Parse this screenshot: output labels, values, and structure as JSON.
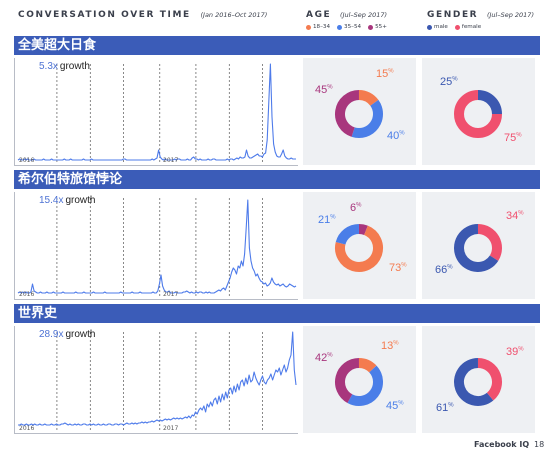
{
  "header": {
    "title": "CONVERSATION OVER TIME",
    "title_range": "(Jan 2016–Oct 2017)",
    "age_label": "AGE",
    "age_range": "(Jul–Sep 2017)",
    "gender_label": "GENDER",
    "gender_range": "(Jul–Sep 2017)"
  },
  "legends": {
    "age": [
      {
        "label": "18–34",
        "color": "#f47b4f"
      },
      {
        "label": "35–54",
        "color": "#4a7ee8"
      },
      {
        "label": "55+",
        "color": "#a8367d"
      }
    ],
    "gender": [
      {
        "label": "male",
        "color": "#3b58b0"
      },
      {
        "label": "female",
        "color": "#f0506e"
      }
    ]
  },
  "year_labels": [
    "2016",
    "2017"
  ],
  "growth_word": "growth",
  "footer": {
    "brand": "Facebook IQ",
    "page": "18"
  },
  "chart_data": [
    {
      "type": "line",
      "title": "全美超大日食",
      "growth": "5.3x",
      "x_range": [
        "2016-01",
        "2017-10"
      ],
      "y_range": [
        0,
        1
      ],
      "series": [
        {
          "values": [
            0.02,
            0.03,
            0.02,
            0.02,
            0.03,
            0.02,
            0.03,
            0.02,
            0.02,
            0.02,
            0.03,
            0.02,
            0.02,
            0.02,
            0.02,
            0.02,
            0.03,
            0.02,
            0.02,
            0.02,
            0.02,
            0.03,
            0.02,
            0.02,
            0.02,
            0.02,
            0.02,
            0.02,
            0.02,
            0.03,
            0.02,
            0.02,
            0.02,
            0.03,
            0.02,
            0.02,
            0.02,
            0.02,
            0.02,
            0.02,
            0.02,
            0.03,
            0.02,
            0.02,
            0.02,
            0.02,
            0.03,
            0.02,
            0.02,
            0.02,
            0.02,
            0.02,
            0.02,
            0.02,
            0.02,
            0.02,
            0.02,
            0.02,
            0.02,
            0.02,
            0.02,
            0.02,
            0.02,
            0.02,
            0.02,
            0.02,
            0.03,
            0.03,
            0.02,
            0.02,
            0.02,
            0.02,
            0.02,
            0.02,
            0.02,
            0.02,
            0.02,
            0.02,
            0.02,
            0.02,
            0.02,
            0.02,
            0.02,
            0.02,
            0.03,
            0.02,
            0.03,
            0.04,
            0.12,
            0.05,
            0.03,
            0.02,
            0.03,
            0.02,
            0.02,
            0.02,
            0.02,
            0.02,
            0.03,
            0.02,
            0.03,
            0.03,
            0.02,
            0.02,
            0.02,
            0.02,
            0.03,
            0.02,
            0.02,
            0.04,
            0.05,
            0.03,
            0.03,
            0.02,
            0.03,
            0.02,
            0.02,
            0.02,
            0.02,
            0.03,
            0.02,
            0.02,
            0.03,
            0.03,
            0.02,
            0.02,
            0.02,
            0.02,
            0.02,
            0.02,
            0.02,
            0.03,
            0.02,
            0.03,
            0.03,
            0.02,
            0.03,
            0.04,
            0.03,
            0.05,
            0.04,
            0.04,
            0.05,
            0.12,
            0.06,
            0.04,
            0.04,
            0.05,
            0.06,
            0.07,
            0.08,
            0.06,
            0.06,
            0.05,
            0.08,
            0.09,
            0.22,
            0.6,
            0.98,
            0.45,
            0.18,
            0.1,
            0.06,
            0.05,
            0.05,
            0.08,
            0.12,
            0.06,
            0.04,
            0.03,
            0.03,
            0.04,
            0.03,
            0.03,
            0.03
          ]
        }
      ]
    },
    {
      "type": "line",
      "title": "希尔伯特旅馆悖论",
      "growth": "15.4x",
      "x_range": [
        "2016-01",
        "2017-10"
      ],
      "y_range": [
        0,
        1
      ],
      "series": [
        {
          "values": [
            0.03,
            0.04,
            0.03,
            0.04,
            0.03,
            0.04,
            0.03,
            0.03,
            0.04,
            0.12,
            0.05,
            0.04,
            0.03,
            0.03,
            0.04,
            0.03,
            0.03,
            0.03,
            0.04,
            0.03,
            0.03,
            0.03,
            0.04,
            0.03,
            0.03,
            0.03,
            0.03,
            0.03,
            0.04,
            0.03,
            0.03,
            0.03,
            0.03,
            0.03,
            0.03,
            0.03,
            0.04,
            0.03,
            0.03,
            0.03,
            0.03,
            0.04,
            0.03,
            0.03,
            0.03,
            0.03,
            0.03,
            0.04,
            0.03,
            0.03,
            0.03,
            0.03,
            0.03,
            0.03,
            0.04,
            0.03,
            0.03,
            0.03,
            0.03,
            0.03,
            0.03,
            0.03,
            0.03,
            0.03,
            0.04,
            0.03,
            0.03,
            0.03,
            0.03,
            0.03,
            0.03,
            0.04,
            0.03,
            0.03,
            0.03,
            0.03,
            0.04,
            0.03,
            0.03,
            0.03,
            0.03,
            0.03,
            0.03,
            0.03,
            0.04,
            0.03,
            0.03,
            0.05,
            0.12,
            0.21,
            0.1,
            0.06,
            0.04,
            0.04,
            0.05,
            0.03,
            0.03,
            0.03,
            0.04,
            0.03,
            0.03,
            0.03,
            0.03,
            0.04,
            0.04,
            0.05,
            0.04,
            0.03,
            0.04,
            0.03,
            0.03,
            0.04,
            0.03,
            0.04,
            0.04,
            0.03,
            0.03,
            0.04,
            0.03,
            0.04,
            0.03,
            0.03,
            0.03,
            0.04,
            0.05,
            0.06,
            0.05,
            0.07,
            0.08,
            0.06,
            0.1,
            0.14,
            0.18,
            0.24,
            0.28,
            0.26,
            0.22,
            0.3,
            0.28,
            0.35,
            0.3,
            0.42,
            0.68,
            0.96,
            0.48,
            0.35,
            0.28,
            0.25,
            0.2,
            0.22,
            0.18,
            0.15,
            0.14,
            0.12,
            0.13,
            0.1,
            0.11,
            0.13,
            0.18,
            0.14,
            0.12,
            0.11,
            0.12,
            0.1,
            0.11,
            0.12,
            0.1,
            0.09,
            0.1,
            0.12,
            0.11,
            0.1,
            0.09,
            0.1
          ]
        }
      ]
    },
    {
      "type": "line",
      "title": "世界史",
      "growth": "28.9x",
      "x_range": [
        "2016-01",
        "2017-10"
      ],
      "y_range": [
        0,
        1
      ],
      "series": [
        {
          "values": [
            0.05,
            0.05,
            0.06,
            0.05,
            0.05,
            0.06,
            0.05,
            0.05,
            0.06,
            0.05,
            0.06,
            0.05,
            0.05,
            0.06,
            0.05,
            0.05,
            0.06,
            0.05,
            0.05,
            0.05,
            0.06,
            0.05,
            0.05,
            0.06,
            0.05,
            0.05,
            0.06,
            0.06,
            0.07,
            0.06,
            0.05,
            0.06,
            0.05,
            0.05,
            0.06,
            0.05,
            0.06,
            0.05,
            0.05,
            0.06,
            0.06,
            0.05,
            0.05,
            0.06,
            0.05,
            0.06,
            0.05,
            0.05,
            0.06,
            0.05,
            0.05,
            0.06,
            0.05,
            0.05,
            0.06,
            0.06,
            0.05,
            0.05,
            0.06,
            0.06,
            0.05,
            0.06,
            0.06,
            0.05,
            0.06,
            0.07,
            0.06,
            0.06,
            0.07,
            0.06,
            0.07,
            0.06,
            0.07,
            0.07,
            0.08,
            0.07,
            0.08,
            0.07,
            0.08,
            0.08,
            0.09,
            0.08,
            0.09,
            0.1,
            0.09,
            0.1,
            0.09,
            0.1,
            0.11,
            0.1,
            0.11,
            0.1,
            0.11,
            0.12,
            0.11,
            0.12,
            0.11,
            0.12,
            0.11,
            0.12,
            0.13,
            0.12,
            0.14,
            0.12,
            0.15,
            0.14,
            0.18,
            0.16,
            0.2,
            0.22,
            0.2,
            0.24,
            0.18,
            0.26,
            0.23,
            0.28,
            0.24,
            0.3,
            0.32,
            0.26,
            0.34,
            0.28,
            0.36,
            0.3,
            0.38,
            0.32,
            0.4,
            0.42,
            0.36,
            0.44,
            0.38,
            0.46,
            0.4,
            0.48,
            0.5,
            0.44,
            0.52,
            0.46,
            0.55,
            0.48,
            0.5,
            0.58,
            0.52,
            0.48,
            0.45,
            0.5,
            0.54,
            0.48,
            0.46,
            0.5,
            0.52,
            0.56,
            0.5,
            0.55,
            0.6,
            0.58,
            0.62,
            0.55,
            0.6,
            0.65,
            0.58,
            0.62,
            0.7,
            0.75,
            0.98,
            0.6,
            0.45
          ]
        }
      ]
    },
    {
      "type": "pie",
      "title": "AGE",
      "row": 1,
      "slices": [
        {
          "label": "18–34",
          "value": 15
        },
        {
          "label": "35–54",
          "value": 40
        },
        {
          "label": "55+",
          "value": 45
        }
      ]
    },
    {
      "type": "pie",
      "title": "GENDER",
      "row": 1,
      "slices": [
        {
          "label": "male",
          "value": 25
        },
        {
          "label": "female",
          "value": 75
        }
      ]
    },
    {
      "type": "pie",
      "title": "AGE",
      "row": 2,
      "slices": [
        {
          "label": "55+",
          "value": 6
        },
        {
          "label": "18–34",
          "value": 73
        },
        {
          "label": "35–54",
          "value": 21
        }
      ]
    },
    {
      "type": "pie",
      "title": "GENDER",
      "row": 2,
      "slices": [
        {
          "label": "female",
          "value": 34
        },
        {
          "label": "male",
          "value": 66
        }
      ]
    },
    {
      "type": "pie",
      "title": "AGE",
      "row": 3,
      "slices": [
        {
          "label": "18–34",
          "value": 13
        },
        {
          "label": "35–54",
          "value": 45
        },
        {
          "label": "55+",
          "value": 42
        }
      ]
    },
    {
      "type": "pie",
      "title": "GENDER",
      "row": 3,
      "slices": [
        {
          "label": "female",
          "value": 39
        },
        {
          "label": "male",
          "value": 61
        }
      ]
    }
  ]
}
